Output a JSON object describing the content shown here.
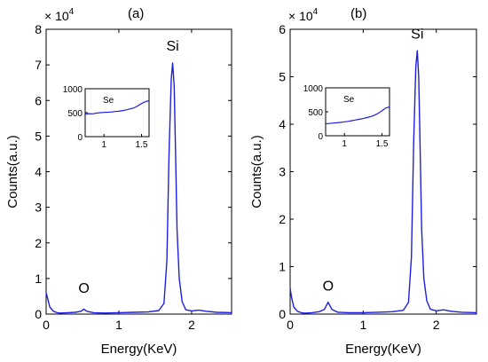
{
  "colors": {
    "series": "#1f1fe0",
    "axes": "#000000",
    "background": "#ffffff"
  },
  "chart_data": [
    {
      "type": "line",
      "panel_label": "(a)",
      "xlabel": "Energy(KeV)",
      "ylabel": "Counts(a.u.)",
      "multiplier": "× 10",
      "multiplier_exp": "4",
      "xlim": [
        0,
        2.55
      ],
      "ylim": [
        0,
        8
      ],
      "xticks": [
        0,
        1,
        2
      ],
      "yticks": [
        0,
        1,
        2,
        3,
        4,
        5,
        6,
        7,
        8
      ],
      "annotations": [
        {
          "text": "O",
          "x": 0.52,
          "y": 0.6
        },
        {
          "text": "Si",
          "x": 1.74,
          "y": 7.4
        }
      ],
      "series": [
        {
          "x": [
            0,
            0.02,
            0.05,
            0.1,
            0.15,
            0.2,
            0.3,
            0.4,
            0.48,
            0.52,
            0.56,
            0.65,
            0.8,
            1.0,
            1.2,
            1.4,
            1.55,
            1.62,
            1.66,
            1.69,
            1.72,
            1.74,
            1.76,
            1.78,
            1.8,
            1.83,
            1.87,
            1.92,
            2.0,
            2.1,
            2.2,
            2.35,
            2.55
          ],
          "y": [
            0.6,
            0.45,
            0.2,
            0.08,
            0.04,
            0.03,
            0.04,
            0.05,
            0.08,
            0.14,
            0.08,
            0.04,
            0.03,
            0.04,
            0.05,
            0.06,
            0.1,
            0.3,
            1.5,
            4.5,
            6.6,
            7.05,
            6.4,
            4.5,
            2.4,
            1.0,
            0.35,
            0.12,
            0.09,
            0.11,
            0.08,
            0.05,
            0.04
          ]
        }
      ],
      "inset": {
        "label": "Se",
        "xlim": [
          0.75,
          1.6
        ],
        "ylim": [
          0,
          1000
        ],
        "xticks": [
          1,
          1.5
        ],
        "yticks": [
          0,
          500,
          1000
        ],
        "x": [
          0.75,
          0.8,
          0.85,
          0.9,
          0.95,
          1.0,
          1.05,
          1.1,
          1.15,
          1.2,
          1.25,
          1.3,
          1.35,
          1.4,
          1.45,
          1.5,
          1.55,
          1.6
        ],
        "y": [
          470,
          480,
          475,
          490,
          500,
          505,
          510,
          515,
          525,
          530,
          545,
          560,
          580,
          600,
          640,
          690,
          730,
          750
        ]
      }
    },
    {
      "type": "line",
      "panel_label": "(b)",
      "xlabel": "Energy(KeV)",
      "ylabel": "Counts(a.u.)",
      "multiplier": "× 10",
      "multiplier_exp": "4",
      "xlim": [
        0,
        2.55
      ],
      "ylim": [
        0,
        6
      ],
      "xticks": [
        0,
        1,
        2
      ],
      "yticks": [
        0,
        1,
        2,
        3,
        4,
        5,
        6
      ],
      "annotations": [
        {
          "text": "O",
          "x": 0.52,
          "y": 0.5
        },
        {
          "text": "Si",
          "x": 1.74,
          "y": 5.8
        }
      ],
      "series": [
        {
          "x": [
            0,
            0.02,
            0.05,
            0.1,
            0.15,
            0.2,
            0.3,
            0.4,
            0.47,
            0.52,
            0.57,
            0.65,
            0.8,
            1.0,
            1.2,
            1.4,
            1.55,
            1.62,
            1.66,
            1.69,
            1.72,
            1.74,
            1.76,
            1.78,
            1.8,
            1.83,
            1.87,
            1.92,
            2.0,
            2.1,
            2.2,
            2.35,
            2.55
          ],
          "y": [
            0.55,
            0.35,
            0.15,
            0.06,
            0.03,
            0.02,
            0.03,
            0.05,
            0.1,
            0.25,
            0.1,
            0.04,
            0.03,
            0.03,
            0.04,
            0.05,
            0.08,
            0.25,
            1.2,
            3.6,
            5.2,
            5.55,
            5.0,
            3.4,
            1.8,
            0.75,
            0.28,
            0.1,
            0.07,
            0.09,
            0.06,
            0.04,
            0.03
          ]
        }
      ],
      "inset": {
        "label": "Se",
        "xlim": [
          0.75,
          1.6
        ],
        "ylim": [
          0,
          1000
        ],
        "xticks": [
          1,
          1.5
        ],
        "yticks": [
          0,
          500,
          1000
        ],
        "x": [
          0.75,
          0.8,
          0.85,
          0.9,
          0.95,
          1.0,
          1.05,
          1.1,
          1.15,
          1.2,
          1.25,
          1.3,
          1.35,
          1.4,
          1.45,
          1.5,
          1.55,
          1.6
        ],
        "y": [
          250,
          255,
          265,
          270,
          280,
          290,
          300,
          315,
          330,
          345,
          360,
          380,
          400,
          430,
          470,
          520,
          580,
          600
        ]
      }
    }
  ]
}
